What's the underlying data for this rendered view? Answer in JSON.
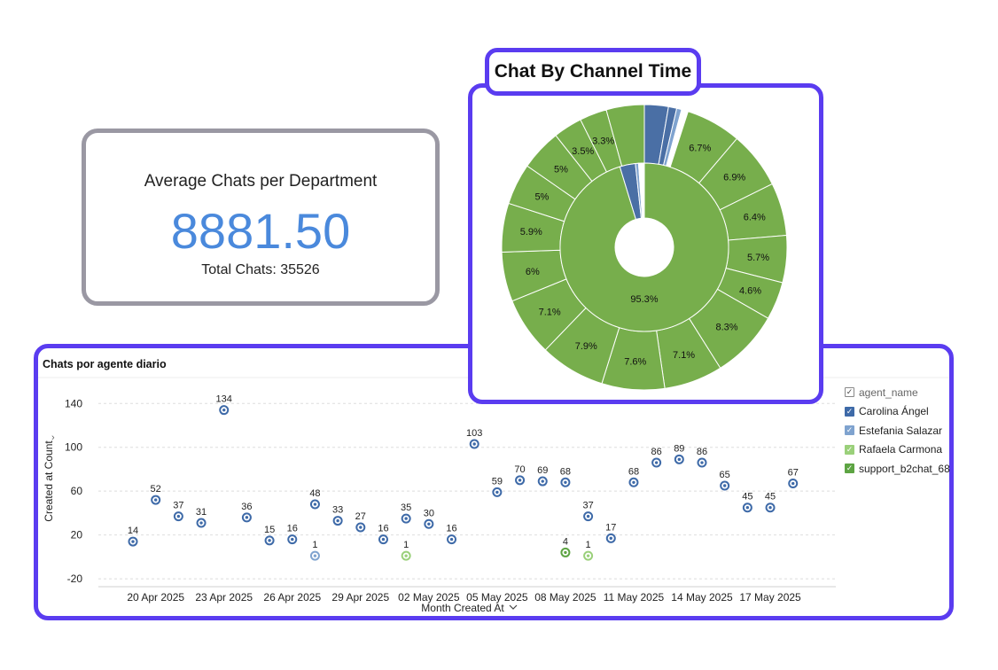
{
  "kpi": {
    "title": "Average Chats per Department",
    "value": "8881.50",
    "subtitle": "Total Chats: 35526",
    "value_color": "#4a89dc"
  },
  "donut": {
    "title": "Chat By Channel Time",
    "inner_label": "95.3%",
    "colors": {
      "green": "#77ae4c",
      "blue": "#4a6fa5",
      "light_blue": "#7fa3cf"
    }
  },
  "line_chart": {
    "title": "Chats por agente diario",
    "xlabel": "Month Created At",
    "ylabel": "Created at Count",
    "legend_header": "agent_name",
    "legend": [
      {
        "name": "Carolina Ángel",
        "color": "#3e6aa8"
      },
      {
        "name": "Estefania Salazar",
        "color": "#7fa3cf"
      },
      {
        "name": "Rafaela Carmona",
        "color": "#9ad07a"
      },
      {
        "name": "support_b2chat_68",
        "color": "#5da443"
      }
    ]
  },
  "chart_data": [
    {
      "type": "scatter",
      "title": "Chats por agente diario",
      "xlabel": "Month Created At",
      "ylabel": "Created at Count",
      "ylim": [
        -28,
        158
      ],
      "yticks": [
        140,
        100,
        60,
        20,
        -20
      ],
      "xticks": [
        "20 Apr 2025",
        "23 Apr 2025",
        "26 Apr 2025",
        "29 Apr 2025",
        "02 May 2025",
        "05 May 2025",
        "08 May 2025",
        "11 May 2025",
        "14 May 2025",
        "17 May 2025"
      ],
      "grid": true,
      "legend_position": "right",
      "series": [
        {
          "name": "Carolina Ángel",
          "points": [
            {
              "date": "2025-04-19",
              "value": 14
            },
            {
              "date": "2025-04-20",
              "value": 52
            },
            {
              "date": "2025-04-21",
              "value": 37
            },
            {
              "date": "2025-04-22",
              "value": 31
            },
            {
              "date": "2025-04-23",
              "value": 134
            },
            {
              "date": "2025-04-24",
              "value": 36
            },
            {
              "date": "2025-04-25",
              "value": 15
            },
            {
              "date": "2025-04-26",
              "value": 16
            },
            {
              "date": "2025-04-27",
              "value": 48
            },
            {
              "date": "2025-04-28",
              "value": 33
            },
            {
              "date": "2025-04-29",
              "value": 27
            },
            {
              "date": "2025-04-30",
              "value": 16
            },
            {
              "date": "2025-05-01",
              "value": 35
            },
            {
              "date": "2025-05-02",
              "value": 30
            },
            {
              "date": "2025-05-03",
              "value": 16
            },
            {
              "date": "2025-05-04",
              "value": 103
            },
            {
              "date": "2025-05-05",
              "value": 59
            },
            {
              "date": "2025-05-06",
              "value": 70
            },
            {
              "date": "2025-05-07",
              "value": 69
            },
            {
              "date": "2025-05-08",
              "value": 68
            },
            {
              "date": "2025-05-09",
              "value": 37
            },
            {
              "date": "2025-05-10",
              "value": 17
            },
            {
              "date": "2025-05-11",
              "value": 68
            },
            {
              "date": "2025-05-12",
              "value": 86
            },
            {
              "date": "2025-05-13",
              "value": 89
            },
            {
              "date": "2025-05-14",
              "value": 86
            },
            {
              "date": "2025-05-15",
              "value": 65
            },
            {
              "date": "2025-05-16",
              "value": 45
            },
            {
              "date": "2025-05-17",
              "value": 45
            },
            {
              "date": "2025-05-18",
              "value": 67
            }
          ]
        },
        {
          "name": "Estefania Salazar",
          "points": [
            {
              "date": "2025-04-27",
              "value": 1
            }
          ]
        },
        {
          "name": "Rafaela Carmona",
          "points": [
            {
              "date": "2025-05-01",
              "value": 1
            },
            {
              "date": "2025-05-09",
              "value": 1
            }
          ]
        },
        {
          "name": "support_b2chat_68",
          "points": [
            {
              "date": "2025-05-08",
              "value": 4
            }
          ]
        }
      ]
    },
    {
      "type": "pie",
      "title": "Chat By Channel Time",
      "inner_ring": [
        {
          "label": "95.3%",
          "value": 95.3,
          "color": "#77ae4c"
        },
        {
          "label": "",
          "value": 3.0,
          "color": "#4a6fa5"
        },
        {
          "label": "",
          "value": 0.6,
          "color": "#7fa3cf"
        },
        {
          "label": "",
          "value": 1.1,
          "color": "#ffffff"
        }
      ],
      "outer_ring": [
        {
          "label": "",
          "value": 2.9,
          "color": "#4a6fa5"
        },
        {
          "label": "",
          "value": 1.0,
          "color": "#4a6fa5"
        },
        {
          "label": "",
          "value": 0.6,
          "color": "#7fa3cf"
        },
        {
          "label": "",
          "value": 0.8,
          "color": "#ffffff"
        },
        {
          "label": "6.7%",
          "value": 6.7,
          "color": "#77ae4c"
        },
        {
          "label": "6.9%",
          "value": 6.9,
          "color": "#77ae4c"
        },
        {
          "label": "6.4%",
          "value": 6.4,
          "color": "#77ae4c"
        },
        {
          "label": "5.7%",
          "value": 5.7,
          "color": "#77ae4c"
        },
        {
          "label": "4.6%",
          "value": 4.6,
          "color": "#77ae4c"
        },
        {
          "label": "8.3%",
          "value": 8.3,
          "color": "#77ae4c"
        },
        {
          "label": "7.1%",
          "value": 7.1,
          "color": "#77ae4c"
        },
        {
          "label": "7.6%",
          "value": 7.6,
          "color": "#77ae4c"
        },
        {
          "label": "7.9%",
          "value": 7.9,
          "color": "#77ae4c"
        },
        {
          "label": "7.1%",
          "value": 7.1,
          "color": "#77ae4c"
        },
        {
          "label": "6%",
          "value": 6.0,
          "color": "#77ae4c"
        },
        {
          "label": "5.9%",
          "value": 5.9,
          "color": "#77ae4c"
        },
        {
          "label": "5%",
          "value": 5.0,
          "color": "#77ae4c"
        },
        {
          "label": "5%",
          "value": 5.0,
          "color": "#77ae4c"
        },
        {
          "label": "3.5%",
          "value": 3.5,
          "color": "#77ae4c"
        },
        {
          "label": "3.3%",
          "value": 3.3,
          "color": "#77ae4c"
        },
        {
          "label": "",
          "value": 4.6,
          "color": "#77ae4c"
        }
      ]
    }
  ]
}
